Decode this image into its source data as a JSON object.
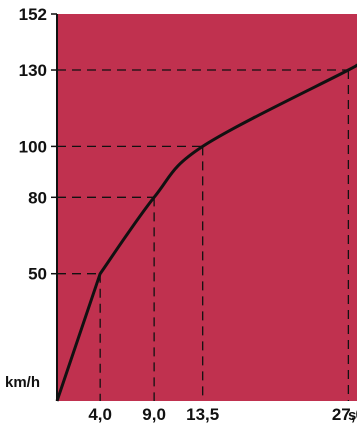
{
  "chart_data": {
    "type": "line",
    "title": "",
    "xlabel": "s",
    "ylabel": "km/h",
    "xlim": [
      0,
      27.8
    ],
    "ylim": [
      0,
      152
    ],
    "grid": false,
    "background_color": "#c0314f",
    "line_color": "#111111",
    "x_tick_labels": [
      "4,0",
      "9,0",
      "13,5",
      "27,0"
    ],
    "y_tick_labels": [
      "50",
      "80",
      "100",
      "130",
      "152"
    ],
    "x": [
      0,
      4.0,
      9.0,
      13.5,
      27.0,
      27.8
    ],
    "y": [
      0,
      50,
      80,
      100,
      130,
      132
    ],
    "reference_points": [
      {
        "x": 4.0,
        "y": 50
      },
      {
        "x": 9.0,
        "y": 80
      },
      {
        "x": 13.5,
        "y": 100
      },
      {
        "x": 27.0,
        "y": 130
      }
    ]
  }
}
